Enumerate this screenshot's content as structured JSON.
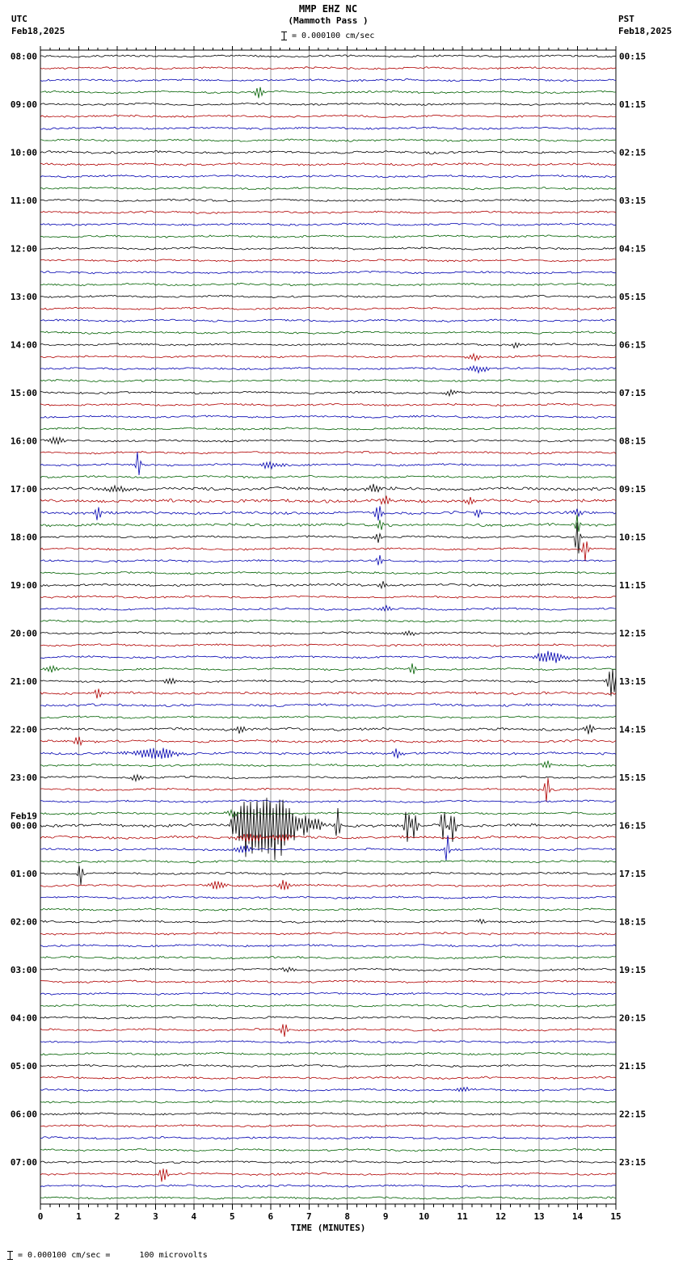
{
  "header": {
    "title": "MMP EHZ NC",
    "subtitle": "(Mammoth Pass )",
    "scale_label": "= 0.000100 cm/sec",
    "left_tz": "UTC",
    "left_date": "Feb18,2025",
    "right_tz": "PST",
    "right_date": "Feb18,2025"
  },
  "footer": {
    "note": "= 0.000100 cm/sec =      100 microvolts",
    "xlabel": "TIME (MINUTES)"
  },
  "chart_data": {
    "type": "line",
    "subtype": "helicorder-seismogram",
    "title": "MMP EHZ NC (Mammoth Pass) 24-hour helicorder, Feb18,2025 08:00 UTC - Feb19,2025 08:00 UTC",
    "xlabel": "TIME (MINUTES)",
    "minutes_per_row": 15,
    "num_rows": 96,
    "x_ticks": [
      0,
      1,
      2,
      3,
      4,
      5,
      6,
      7,
      8,
      9,
      10,
      11,
      12,
      13,
      14,
      15
    ],
    "trace_color_cycle": [
      "#000000",
      "#b00000",
      "#0000b0",
      "#006000"
    ],
    "grid_color": "#9a9a9a",
    "left_time_labels": [
      {
        "row": 0,
        "text": "08:00"
      },
      {
        "row": 4,
        "text": "09:00"
      },
      {
        "row": 8,
        "text": "10:00"
      },
      {
        "row": 12,
        "text": "11:00"
      },
      {
        "row": 16,
        "text": "12:00"
      },
      {
        "row": 20,
        "text": "13:00"
      },
      {
        "row": 24,
        "text": "14:00"
      },
      {
        "row": 28,
        "text": "15:00"
      },
      {
        "row": 32,
        "text": "16:00"
      },
      {
        "row": 36,
        "text": "17:00"
      },
      {
        "row": 40,
        "text": "18:00"
      },
      {
        "row": 44,
        "text": "19:00"
      },
      {
        "row": 48,
        "text": "20:00"
      },
      {
        "row": 52,
        "text": "21:00"
      },
      {
        "row": 56,
        "text": "22:00"
      },
      {
        "row": 60,
        "text": "23:00"
      },
      {
        "row": 64,
        "text": "00:00",
        "prefix": "Feb19"
      },
      {
        "row": 68,
        "text": "01:00"
      },
      {
        "row": 72,
        "text": "02:00"
      },
      {
        "row": 76,
        "text": "03:00"
      },
      {
        "row": 80,
        "text": "04:00"
      },
      {
        "row": 84,
        "text": "05:00"
      },
      {
        "row": 88,
        "text": "06:00"
      },
      {
        "row": 92,
        "text": "07:00"
      }
    ],
    "right_time_labels": [
      {
        "row": 0,
        "text": "00:15"
      },
      {
        "row": 4,
        "text": "01:15"
      },
      {
        "row": 8,
        "text": "02:15"
      },
      {
        "row": 12,
        "text": "03:15"
      },
      {
        "row": 16,
        "text": "04:15"
      },
      {
        "row": 20,
        "text": "05:15"
      },
      {
        "row": 24,
        "text": "06:15"
      },
      {
        "row": 28,
        "text": "07:15"
      },
      {
        "row": 32,
        "text": "08:15"
      },
      {
        "row": 36,
        "text": "09:15"
      },
      {
        "row": 40,
        "text": "10:15"
      },
      {
        "row": 44,
        "text": "11:15"
      },
      {
        "row": 48,
        "text": "12:15"
      },
      {
        "row": 52,
        "text": "13:15"
      },
      {
        "row": 56,
        "text": "14:15"
      },
      {
        "row": 60,
        "text": "15:15"
      },
      {
        "row": 64,
        "text": "16:15"
      },
      {
        "row": 68,
        "text": "17:15"
      },
      {
        "row": 72,
        "text": "18:15"
      },
      {
        "row": 76,
        "text": "19:15"
      },
      {
        "row": 80,
        "text": "20:15"
      },
      {
        "row": 84,
        "text": "21:15"
      },
      {
        "row": 88,
        "text": "22:15"
      },
      {
        "row": 92,
        "text": "23:15"
      }
    ],
    "noise_base_amp": 1.2,
    "row_noise": {
      "8": 1.4,
      "9": 1.4,
      "36": 1.9,
      "37": 1.9,
      "38": 1.7,
      "39": 1.6,
      "44": 1.4,
      "53": 1.5,
      "54": 1.5,
      "56": 1.6,
      "57": 1.5,
      "58": 1.5,
      "64": 1.8,
      "65": 1.6
    },
    "events_format": [
      "row",
      "minute_center",
      "amplitude_px",
      "width_minutes"
    ],
    "events": [
      [
        3,
        5.7,
        7,
        0.12
      ],
      [
        24,
        12.4,
        4,
        0.1
      ],
      [
        25,
        11.3,
        4,
        0.2
      ],
      [
        26,
        11.4,
        5,
        0.25
      ],
      [
        28,
        10.7,
        4,
        0.15
      ],
      [
        32,
        0.4,
        5,
        0.2
      ],
      [
        34,
        2.55,
        22,
        0.05
      ],
      [
        34,
        6.0,
        4,
        0.3
      ],
      [
        36,
        2.0,
        4,
        0.3
      ],
      [
        36,
        8.7,
        5,
        0.15
      ],
      [
        37,
        9.0,
        6,
        0.15
      ],
      [
        37,
        11.2,
        5,
        0.12
      ],
      [
        38,
        1.5,
        11,
        0.08
      ],
      [
        38,
        8.8,
        9,
        0.1
      ],
      [
        38,
        11.4,
        6,
        0.1
      ],
      [
        38,
        14.0,
        7,
        0.1
      ],
      [
        39,
        8.85,
        8,
        0.08
      ],
      [
        39,
        14.0,
        16,
        0.06
      ],
      [
        40,
        8.8,
        6,
        0.1
      ],
      [
        40,
        14.0,
        28,
        0.06
      ],
      [
        41,
        14.2,
        16,
        0.07
      ],
      [
        42,
        8.85,
        10,
        0.07
      ],
      [
        44,
        8.9,
        5,
        0.1
      ],
      [
        46,
        9.0,
        4,
        0.15
      ],
      [
        48,
        9.6,
        4,
        0.15
      ],
      [
        50,
        13.3,
        8,
        0.35
      ],
      [
        51,
        0.3,
        5,
        0.15
      ],
      [
        51,
        9.7,
        10,
        0.07
      ],
      [
        52,
        3.4,
        4,
        0.2
      ],
      [
        52,
        14.9,
        22,
        0.1
      ],
      [
        53,
        1.5,
        9,
        0.08
      ],
      [
        56,
        5.2,
        5,
        0.15
      ],
      [
        56,
        14.3,
        8,
        0.1
      ],
      [
        57,
        1.0,
        7,
        0.1
      ],
      [
        58,
        3.0,
        8,
        0.5
      ],
      [
        58,
        9.3,
        6,
        0.12
      ],
      [
        59,
        13.2,
        6,
        0.1
      ],
      [
        60,
        2.5,
        4,
        0.15
      ],
      [
        61,
        13.2,
        20,
        0.06
      ],
      [
        63,
        5.0,
        4,
        0.2
      ],
      [
        64,
        5.05,
        18,
        0.08
      ],
      [
        64,
        5.2,
        30,
        0.07
      ],
      [
        64,
        5.35,
        42,
        0.07
      ],
      [
        64,
        5.5,
        38,
        0.07
      ],
      [
        64,
        5.65,
        45,
        0.08
      ],
      [
        64,
        5.8,
        40,
        0.08
      ],
      [
        64,
        5.95,
        48,
        0.07
      ],
      [
        64,
        6.1,
        42,
        0.08
      ],
      [
        64,
        6.25,
        36,
        0.08
      ],
      [
        64,
        6.4,
        30,
        0.1
      ],
      [
        64,
        6.6,
        22,
        0.12
      ],
      [
        64,
        6.9,
        12,
        0.15
      ],
      [
        64,
        7.2,
        8,
        0.15
      ],
      [
        64,
        7.75,
        26,
        0.05
      ],
      [
        64,
        9.55,
        30,
        0.06
      ],
      [
        64,
        9.75,
        18,
        0.08
      ],
      [
        64,
        10.5,
        26,
        0.06
      ],
      [
        64,
        10.75,
        22,
        0.08
      ],
      [
        65,
        5.5,
        5,
        0.4
      ],
      [
        65,
        6.3,
        5,
        0.3
      ],
      [
        66,
        5.3,
        6,
        0.2
      ],
      [
        66,
        10.6,
        24,
        0.05
      ],
      [
        68,
        1.05,
        16,
        0.06
      ],
      [
        69,
        4.6,
        6,
        0.2
      ],
      [
        69,
        6.35,
        9,
        0.12
      ],
      [
        72,
        11.5,
        4,
        0.1
      ],
      [
        76,
        6.5,
        3,
        0.2
      ],
      [
        81,
        6.35,
        11,
        0.08
      ],
      [
        86,
        11.0,
        3,
        0.2
      ],
      [
        93,
        3.2,
        13,
        0.1
      ]
    ]
  }
}
